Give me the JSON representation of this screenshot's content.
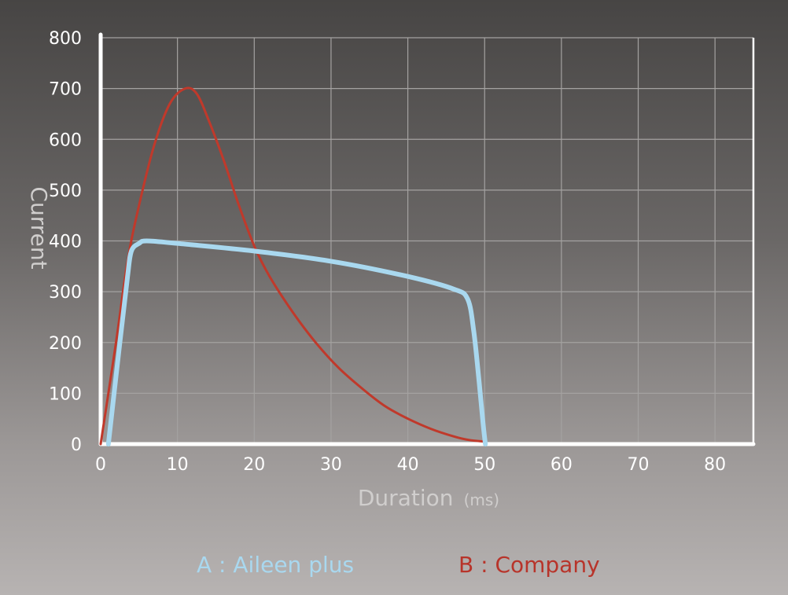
{
  "chart_data": {
    "type": "line",
    "title": "",
    "xlabel": "Duration",
    "xunit": "(ms)",
    "ylabel": "Current",
    "xlim": [
      0,
      85
    ],
    "ylim": [
      0,
      800
    ],
    "xticks": [
      0,
      10,
      20,
      30,
      40,
      50,
      60,
      70,
      80
    ],
    "yticks": [
      0,
      100,
      200,
      300,
      400,
      500,
      600,
      700,
      800
    ],
    "grid": true,
    "legend_position": "bottom",
    "series": [
      {
        "name": "B : Company",
        "color": "#c0392b",
        "points": [
          [
            0,
            0
          ],
          [
            2,
            200
          ],
          [
            3.5,
            360
          ],
          [
            5,
            470
          ],
          [
            7,
            590
          ],
          [
            9,
            670
          ],
          [
            11,
            700
          ],
          [
            12.5,
            690
          ],
          [
            14,
            640
          ],
          [
            16,
            560
          ],
          [
            18,
            470
          ],
          [
            20,
            390
          ],
          [
            22,
            330
          ],
          [
            25,
            260
          ],
          [
            28,
            200
          ],
          [
            31,
            150
          ],
          [
            34,
            110
          ],
          [
            37,
            75
          ],
          [
            40,
            50
          ],
          [
            43,
            30
          ],
          [
            46,
            15
          ],
          [
            48,
            8
          ],
          [
            50,
            5
          ]
        ]
      },
      {
        "name": "A : Aileen plus",
        "color": "#a9d8ef",
        "points": [
          [
            1,
            0
          ],
          [
            2.5,
            200
          ],
          [
            3.5,
            330
          ],
          [
            4,
            380
          ],
          [
            5,
            395
          ],
          [
            6,
            400
          ],
          [
            10,
            395
          ],
          [
            20,
            380
          ],
          [
            30,
            360
          ],
          [
            40,
            330
          ],
          [
            46,
            305
          ],
          [
            47.8,
            285
          ],
          [
            48.6,
            220
          ],
          [
            49.3,
            120
          ],
          [
            49.8,
            40
          ],
          [
            50.1,
            0
          ]
        ]
      }
    ]
  },
  "legend": {
    "a_label": "A : Aileen plus",
    "b_label": "B : Company",
    "a_color": "#a9d8ef",
    "b_color": "#c0392b"
  }
}
